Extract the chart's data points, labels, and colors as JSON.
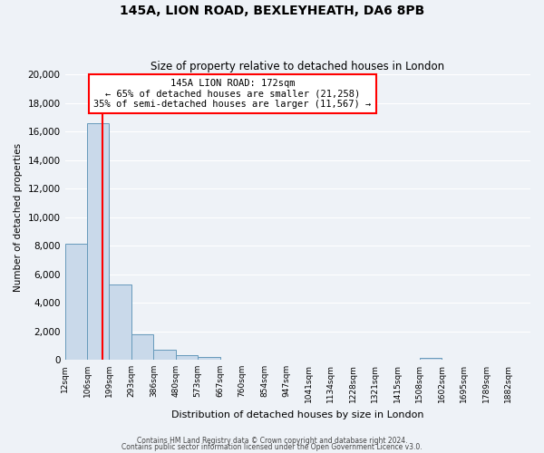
{
  "title": "145A, LION ROAD, BEXLEYHEATH, DA6 8PB",
  "subtitle": "Size of property relative to detached houses in London",
  "xlabel": "Distribution of detached houses by size in London",
  "ylabel": "Number of detached properties",
  "bin_labels": [
    "12sqm",
    "106sqm",
    "199sqm",
    "293sqm",
    "386sqm",
    "480sqm",
    "573sqm",
    "667sqm",
    "760sqm",
    "854sqm",
    "947sqm",
    "1041sqm",
    "1134sqm",
    "1228sqm",
    "1321sqm",
    "1415sqm",
    "1508sqm",
    "1602sqm",
    "1695sqm",
    "1789sqm",
    "1882sqm"
  ],
  "bar_heights": [
    8150,
    16550,
    5280,
    1820,
    730,
    310,
    200,
    0,
    0,
    0,
    0,
    0,
    0,
    0,
    0,
    0,
    140,
    0,
    0,
    0,
    0
  ],
  "bar_color": "#c9d9ea",
  "bar_edgecolor": "#6699bb",
  "vline_color": "red",
  "annotation_title": "145A LION ROAD: 172sqm",
  "annotation_line1": "← 65% of detached houses are smaller (21,258)",
  "annotation_line2": "35% of semi-detached houses are larger (11,567) →",
  "annotation_box_facecolor": "white",
  "annotation_box_edgecolor": "red",
  "ylim": [
    0,
    20000
  ],
  "yticks": [
    0,
    2000,
    4000,
    6000,
    8000,
    10000,
    12000,
    14000,
    16000,
    18000,
    20000
  ],
  "footer1": "Contains HM Land Registry data © Crown copyright and database right 2024.",
  "footer2": "Contains public sector information licensed under the Open Government Licence v3.0.",
  "bg_color": "#eef2f7",
  "grid_color": "#ffffff"
}
